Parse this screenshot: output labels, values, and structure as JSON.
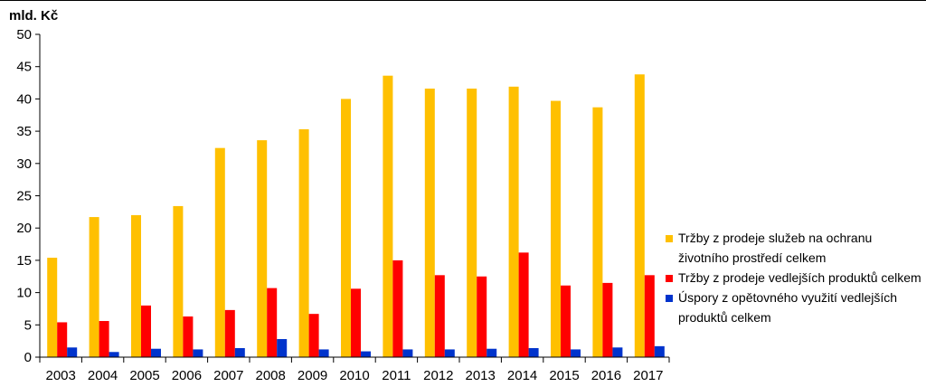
{
  "colors": {
    "series_1": "#FFC000",
    "series_2": "#FF0000",
    "series_3": "#0033CC",
    "axis": "#000000",
    "grid": "#000000"
  },
  "chart_data": {
    "type": "bar",
    "title": "",
    "xlabel": "",
    "ylabel": "mld. Kč",
    "ylim": [
      0,
      50
    ],
    "yticks": [
      0,
      5,
      10,
      15,
      20,
      25,
      30,
      35,
      40,
      45,
      50
    ],
    "grid": false,
    "legend_position": "right",
    "categories": [
      "2003",
      "2004",
      "2005",
      "2006",
      "2007",
      "2008",
      "2009",
      "2010",
      "2011",
      "2012",
      "2013",
      "2014",
      "2015",
      "2016",
      "2017"
    ],
    "series": [
      {
        "name": "Tržby z prodeje služeb na ochranu životního prostředí celkem",
        "values": [
          15.4,
          21.7,
          22.0,
          23.4,
          32.4,
          33.6,
          35.3,
          40.0,
          43.6,
          41.6,
          41.6,
          41.9,
          39.7,
          38.7,
          43.8
        ]
      },
      {
        "name": "Tržby z prodeje vedlejších produktů celkem",
        "values": [
          5.4,
          5.6,
          8.0,
          6.3,
          7.3,
          10.7,
          6.7,
          10.6,
          15.0,
          12.7,
          12.5,
          16.2,
          11.1,
          11.5,
          12.7
        ]
      },
      {
        "name": "Úspory z opětovného využití vedlejších produktů celkem",
        "values": [
          1.5,
          0.8,
          1.3,
          1.2,
          1.4,
          2.8,
          1.2,
          0.9,
          1.2,
          1.2,
          1.3,
          1.4,
          1.2,
          1.5,
          1.7
        ]
      }
    ]
  }
}
